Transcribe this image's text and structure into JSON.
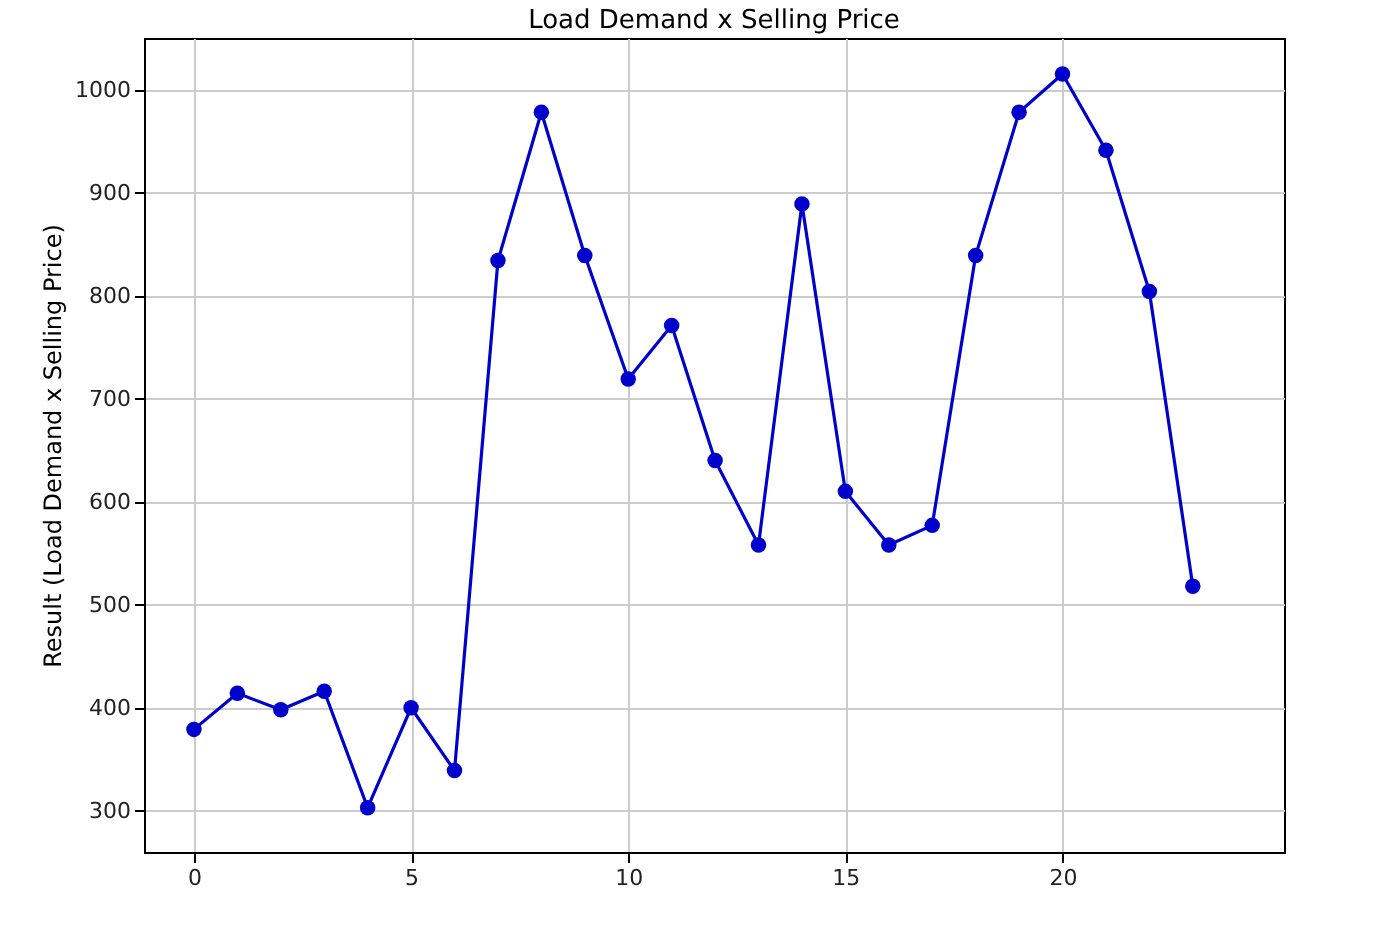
{
  "chart_data": {
    "type": "line",
    "title": "Load Demand x Selling Price",
    "ylabel": "Result (Load Demand x Selling Price)",
    "x": [
      0,
      1,
      2,
      3,
      4,
      5,
      6,
      7,
      8,
      9,
      10,
      11,
      12,
      13,
      14,
      15,
      16,
      17,
      18,
      19,
      20,
      21,
      22,
      23
    ],
    "series": [
      {
        "color": "#0000cc",
        "values": [
          379,
          414,
          398,
          416,
          303,
          400,
          339,
          834,
          978,
          839,
          719,
          771,
          640,
          558,
          889,
          610,
          558,
          577,
          839,
          978,
          1015,
          941,
          804,
          518
        ]
      }
    ],
    "xlim": [
      -1.15,
      25.1
    ],
    "xticks": [
      0,
      5,
      10,
      15,
      20
    ],
    "ylim": [
      260,
      1050
    ],
    "yticks": [
      300,
      400,
      500,
      600,
      700,
      800,
      900,
      1000
    ],
    "grid": true,
    "marker": "circle",
    "line_style": "solid"
  }
}
